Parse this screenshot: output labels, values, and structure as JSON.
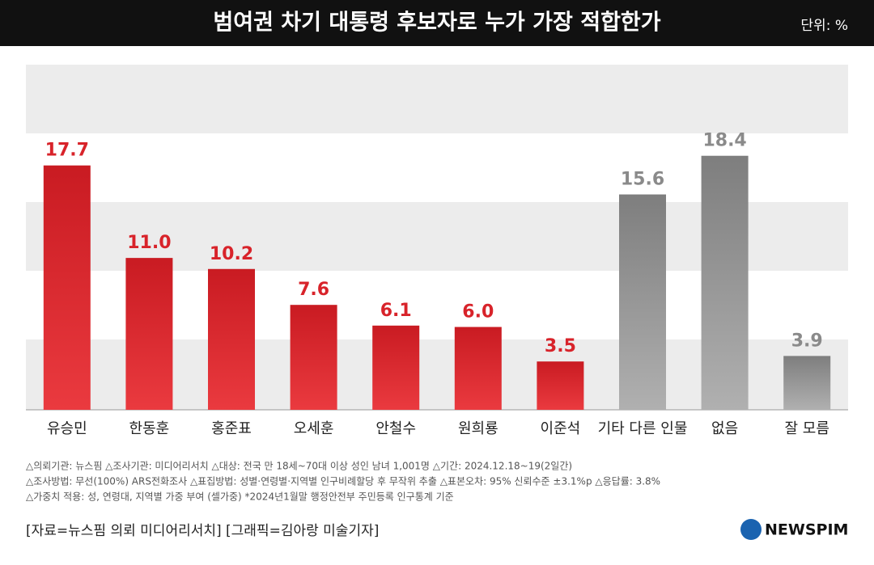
{
  "chart_data": {
    "type": "bar",
    "title": "범여권 차기 대통령 후보자로 누가 가장 적합한가",
    "unit": "단위: %",
    "categories": [
      "유승민",
      "한동훈",
      "홍준표",
      "오세훈",
      "안철수",
      "원희룡",
      "이준석",
      "기타 다른 인물",
      "없음",
      "잘 모름"
    ],
    "values": [
      17.7,
      11.0,
      10.2,
      7.6,
      6.1,
      6.0,
      3.5,
      15.6,
      18.4,
      3.9
    ],
    "value_labels": [
      "17.7",
      "11.0",
      "10.2",
      "7.6",
      "6.1",
      "6.0",
      "3.5",
      "15.6",
      "18.4",
      "3.9"
    ],
    "colors": [
      "#d8232a",
      "#d8232a",
      "#d8232a",
      "#d8232a",
      "#d8232a",
      "#d8232a",
      "#d8232a",
      "#8a8a8a",
      "#8a8a8a",
      "#8a8a8a"
    ],
    "ylim": [
      0,
      25
    ],
    "notes": [
      "△의뢰기관: 뉴스핌  △조사기관: 미디어리서치  △대상: 전국 만 18세~70대 이상 성인 남녀 1,001명  △기간: 2024.12.18~19(2일간)",
      "△조사방법: 무선(100%) ARS전화조사  △표집방법: 성별·연령별·지역별 인구비례할당 후 무작위 추출  △표본오차: 95% 신뢰수준 ±3.1%p  △응답률: 3.8%",
      "△가중치 적용: 성, 연령대, 지역별 가중 부여 (셀가중) *2024년1월말 행정안전부 주민등록 인구통계 기준"
    ],
    "source": "[자료=뉴스핌 의뢰 미디어리서치] [그래픽=김아랑 미술기자]",
    "logo": "NEWSPIM"
  }
}
